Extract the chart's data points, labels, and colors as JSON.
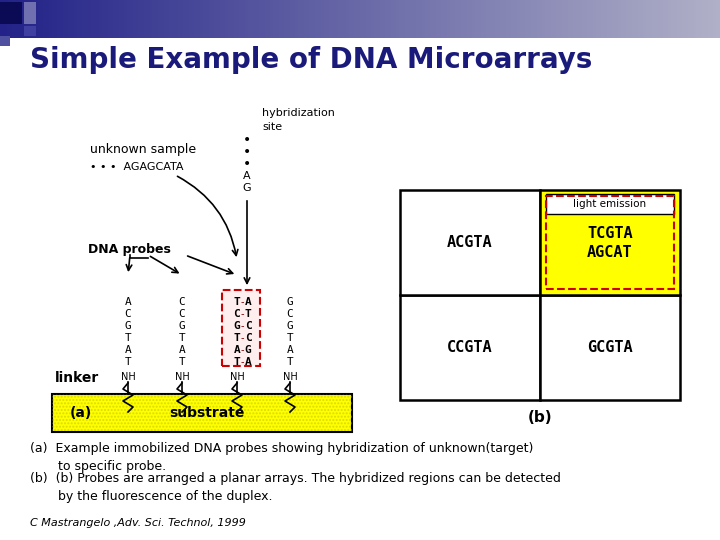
{
  "title": "Simple Example of DNA Microarrays",
  "title_color": "#1a1a7a",
  "title_fontsize": 20,
  "bg_color": "#ffffff",
  "caption_a": "(a)  Example immobilized DNA probes showing hybridization of unknown(target)\n       to specific probe.",
  "caption_b": "(b)  (b) Probes are arranged a planar arrays. The hybridized regions can be detected\n       by the fluorescence of the duplex.",
  "citation": "C Mastrangelo ,Adv. Sci. Technol, 1999",
  "substrate_color": "#ffff00",
  "highlight_color": "#ffff00",
  "probe_box_color": "#cc0000",
  "grid_cell_highlight_color": "#ffff00",
  "grid_border_color": "#000000",
  "header_colors": [
    "#1a1a7a",
    "#9090b0"
  ],
  "corner_dark": "#0a0a50",
  "corner_light": "#8888aa"
}
